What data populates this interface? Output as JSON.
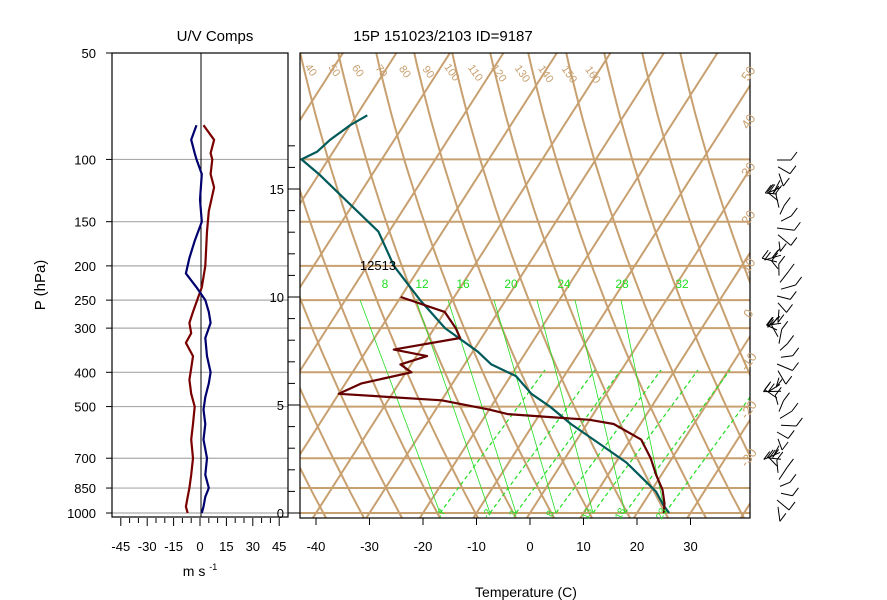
{
  "chart_data": [
    {
      "type": "line",
      "title": "U/V Comps",
      "ylabel": "P (hPa)",
      "xlabel": "m s",
      "xlabel_sup": "-1",
      "xlim": [
        -50,
        50
      ],
      "xticks": [
        "-45",
        "-30",
        "-15",
        "0",
        "15",
        "30",
        "45"
      ],
      "xtick_values": [
        -45,
        -30,
        -15,
        0,
        15,
        30,
        45
      ],
      "pressure_ticks": [
        "50",
        "100",
        "150",
        "200",
        "250",
        "300",
        "400",
        "500",
        "700",
        "850",
        "1000"
      ],
      "pressure_values": [
        50,
        100,
        150,
        200,
        250,
        300,
        400,
        500,
        700,
        850,
        1000
      ],
      "gridlines_hpa": [
        100,
        150,
        200,
        250,
        300,
        400,
        500,
        700,
        850,
        1000
      ],
      "grid": true,
      "series": [
        {
          "color": "#7a0000",
          "points": [
            [
              2,
              80
            ],
            [
              8,
              88
            ],
            [
              6,
              96
            ],
            [
              7,
              100
            ],
            [
              6,
              110
            ],
            [
              8,
              120
            ],
            [
              5,
              140
            ],
            [
              4,
              160
            ],
            [
              3,
              200
            ],
            [
              1,
              230
            ],
            [
              -4,
              270
            ],
            [
              -6,
              290
            ],
            [
              -5,
              310
            ],
            [
              -8,
              330
            ],
            [
              -4,
              360
            ],
            [
              -5,
              390
            ],
            [
              -6,
              420
            ],
            [
              -5,
              460
            ],
            [
              -3,
              500
            ],
            [
              -4,
              560
            ],
            [
              -5,
              620
            ],
            [
              -4,
              700
            ],
            [
              -5,
              780
            ],
            [
              -6,
              850
            ],
            [
              -7,
              900
            ],
            [
              -8,
              960
            ],
            [
              -7,
              1000
            ]
          ]
        },
        {
          "color": "#00006e",
          "points": [
            [
              -2,
              80
            ],
            [
              -5,
              88
            ],
            [
              -3,
              96
            ],
            [
              -2,
              100
            ],
            [
              1,
              110
            ],
            [
              0,
              130
            ],
            [
              1,
              150
            ],
            [
              -3,
              170
            ],
            [
              -6,
              190
            ],
            [
              -8,
              210
            ],
            [
              -2,
              230
            ],
            [
              3,
              250
            ],
            [
              5,
              270
            ],
            [
              6,
              290
            ],
            [
              3,
              320
            ],
            [
              4,
              360
            ],
            [
              6,
              400
            ],
            [
              5,
              430
            ],
            [
              3,
              470
            ],
            [
              2,
              510
            ],
            [
              3,
              560
            ],
            [
              2,
              620
            ],
            [
              4,
              700
            ],
            [
              3,
              780
            ],
            [
              5,
              850
            ],
            [
              3,
              900
            ],
            [
              2,
              960
            ],
            [
              1,
              1000
            ]
          ]
        }
      ]
    },
    {
      "type": "line",
      "title": "15P 151023/2103 ID=9187",
      "xlabel": "Temperature (C)",
      "xlim": [
        -45,
        40
      ],
      "xticks": [
        "-40",
        "-30",
        "-20",
        "-10",
        "0",
        "10",
        "20",
        "30"
      ],
      "xtick_values": [
        -40,
        -30,
        -20,
        -10,
        0,
        10,
        20,
        30
      ],
      "height_ticks": [
        "15",
        "10",
        "5",
        "0"
      ],
      "height_km": [
        15,
        10,
        5,
        0
      ],
      "isotherm_labels": [
        "40",
        "50",
        "60",
        "70",
        "80",
        "90",
        "100",
        "110",
        "120",
        "130",
        "140",
        "150",
        "160"
      ],
      "right_edge_labels": [
        "50",
        "40",
        "30",
        "20",
        "10",
        "0",
        "-10",
        "-20",
        "-30"
      ],
      "mixing_ratio_labels": [
        "8",
        "12",
        "16",
        "20",
        "24",
        "28",
        "32"
      ],
      "bottom_labels": [
        "-7",
        "-2",
        "3",
        "8",
        "13",
        "18",
        "23"
      ],
      "annotation": "12513",
      "series": [
        {
          "color": "#005a5a",
          "points": [
            [
              -78,
              75
            ],
            [
              -80,
              80
            ],
            [
              -82,
              88
            ],
            [
              -83,
              95
            ],
            [
              -85,
              100
            ],
            [
              -80,
              110
            ],
            [
              -72,
              130
            ],
            [
              -62,
              160
            ],
            [
              -55,
              200
            ],
            [
              -46,
              250
            ],
            [
              -38,
              300
            ],
            [
              -29,
              350
            ],
            [
              -25,
              380
            ],
            [
              -19,
              410
            ],
            [
              -14,
              460
            ],
            [
              -9,
              500
            ],
            [
              -3,
              560
            ],
            [
              5,
              640
            ],
            [
              12,
              720
            ],
            [
              17,
              800
            ],
            [
              21,
              870
            ],
            [
              24,
              950
            ],
            [
              26,
              1000
            ]
          ]
        },
        {
          "color": "#660000",
          "points": [
            [
              -50,
              245
            ],
            [
              -40,
              270
            ],
            [
              -36,
              300
            ],
            [
              -34,
              320
            ],
            [
              -45,
              345
            ],
            [
              -38,
              360
            ],
            [
              -42,
              380
            ],
            [
              -39,
              400
            ],
            [
              -47,
              430
            ],
            [
              -50,
              460
            ],
            [
              -30,
              480
            ],
            [
              -20,
              510
            ],
            [
              -16,
              525
            ],
            [
              -8,
              535
            ],
            [
              0,
              545
            ],
            [
              5,
              560
            ],
            [
              12,
              620
            ],
            [
              16,
              700
            ],
            [
              19,
              780
            ],
            [
              22,
              860
            ],
            [
              24,
              940
            ],
            [
              25,
              1000
            ]
          ]
        }
      ]
    }
  ]
}
